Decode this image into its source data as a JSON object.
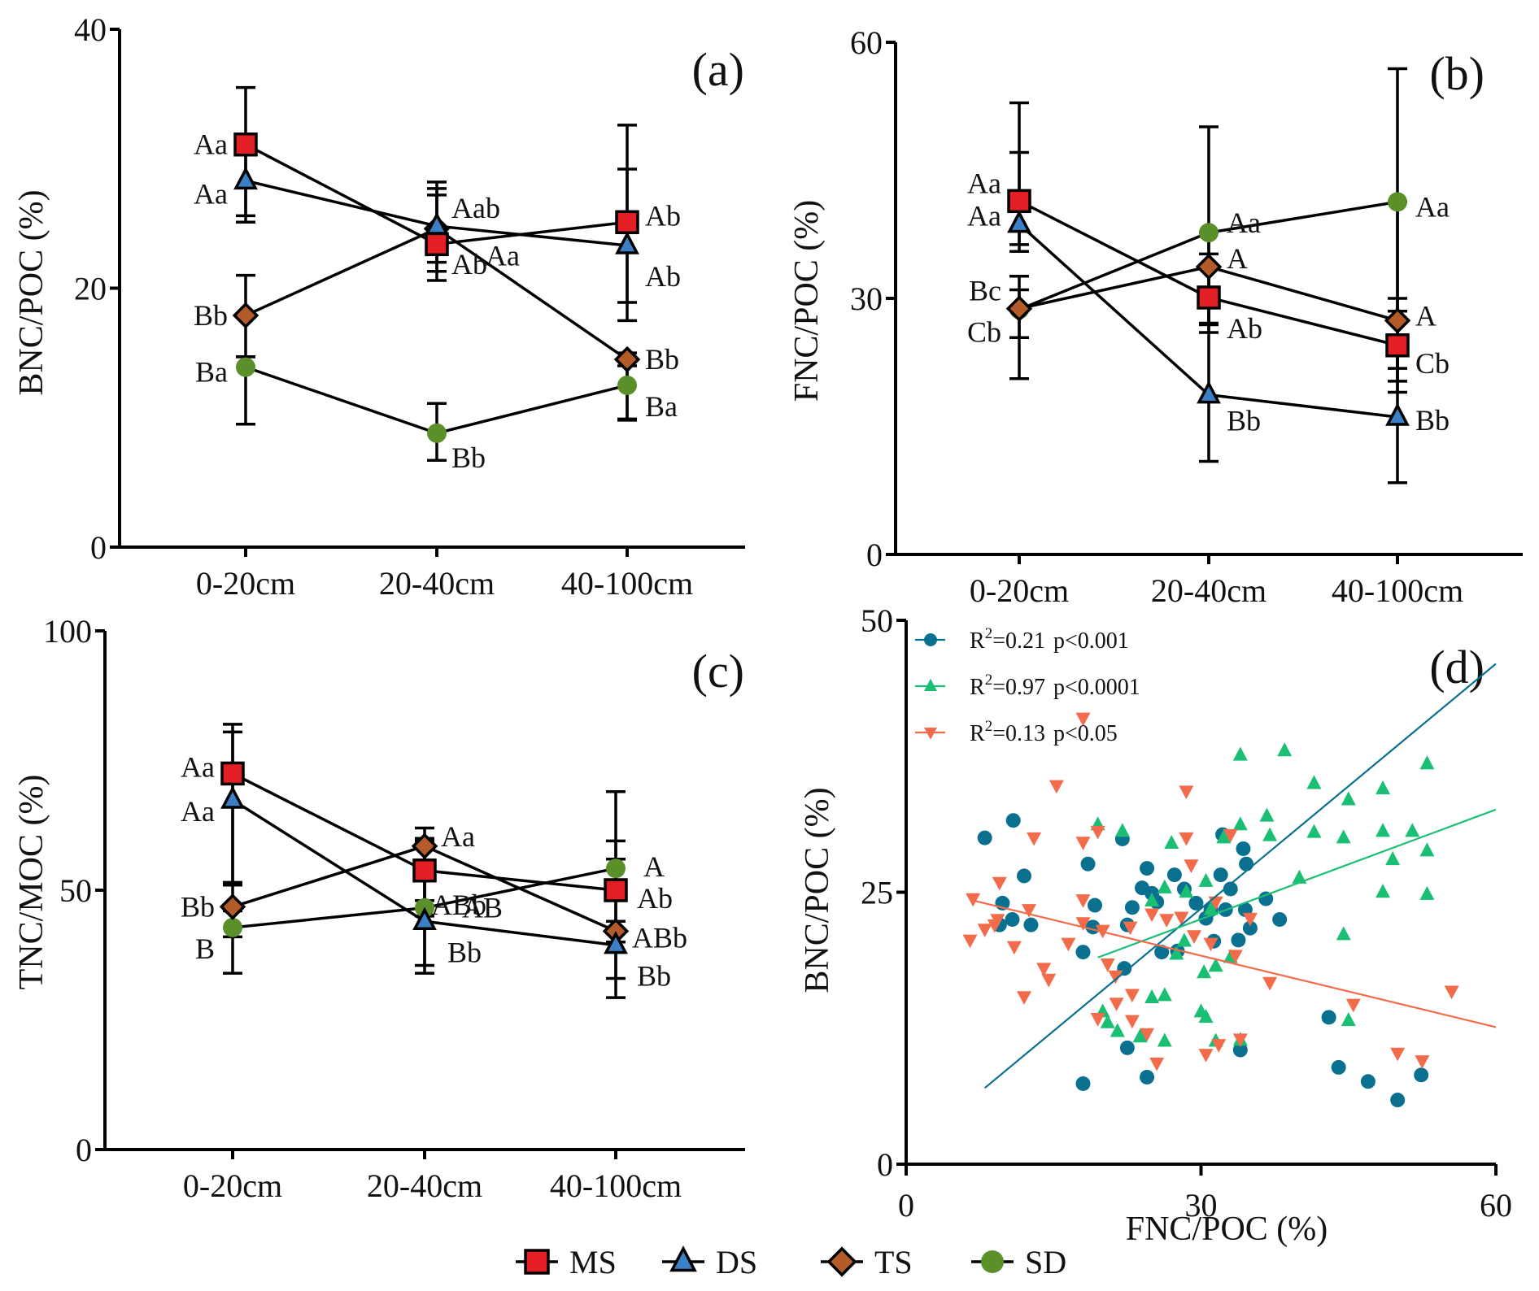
{
  "figure": {
    "legend": [
      {
        "name": "MS",
        "marker": "square",
        "color": "#e31e24"
      },
      {
        "name": "DS",
        "marker": "triangle-up",
        "color": "#3b7fc4"
      },
      {
        "name": "TS",
        "marker": "diamond",
        "color": "#b35c2a"
      },
      {
        "name": "SD",
        "marker": "circle",
        "color": "#5a8f2a"
      }
    ]
  },
  "chart_data": [
    {
      "id": "a",
      "type": "line",
      "panel_label": "(a)",
      "title": "",
      "xlabel": "",
      "ylabel": "BNC/POC (%)",
      "categories": [
        "0-20cm",
        "20-40cm",
        "40-100cm"
      ],
      "ylim": [
        0,
        40
      ],
      "yticks": [
        0,
        20,
        40
      ],
      "series": [
        {
          "name": "MS",
          "values": [
            31.1,
            23.4,
            25.1
          ],
          "err_upper": [
            35.5,
            27.7,
            32.6
          ],
          "err_lower": [
            25.6,
            20.6,
            17.5
          ],
          "labels": [
            "Aa",
            "Aa",
            "Ab"
          ]
        },
        {
          "name": "DS",
          "values": [
            28.3,
            24.8,
            23.3
          ],
          "err_upper": [
            31.1,
            28.2,
            29.2
          ],
          "err_lower": [
            25.1,
            21.3,
            18.9
          ],
          "labels": [
            "Aa",
            "Aab",
            "Ab"
          ]
        },
        {
          "name": "TS",
          "values": [
            17.9,
            24.6,
            14.5
          ],
          "err_upper": [
            21.0,
            27.2,
            15.0
          ],
          "err_lower": [
            14.7,
            22.0,
            9.8
          ],
          "labels": [
            "Bb",
            "Ab",
            "Bb"
          ]
        },
        {
          "name": "SD",
          "values": [
            13.9,
            8.8,
            12.5
          ],
          "err_upper": [
            14.7,
            11.1,
            14.0
          ],
          "err_lower": [
            9.5,
            6.7,
            9.9
          ],
          "labels": [
            "Ba",
            "Bb",
            "Ba"
          ]
        }
      ]
    },
    {
      "id": "b",
      "type": "line",
      "panel_label": "(b)",
      "title": "",
      "xlabel": "",
      "ylabel": "FNC/POC (%)",
      "categories": [
        "0-20cm",
        "20-40cm",
        "40-100cm"
      ],
      "ylim": [
        0,
        60
      ],
      "yticks": [
        0,
        30,
        60
      ],
      "series": [
        {
          "name": "MS",
          "values": [
            41.4,
            30.1,
            24.5
          ],
          "err_upper": [
            47.1,
            33.4,
            28.5
          ],
          "err_lower": [
            35.5,
            26.9,
            20.3
          ],
          "labels": [
            "Aa",
            "Ab",
            "Cb"
          ]
        },
        {
          "name": "DS",
          "values": [
            38.7,
            18.7,
            16.1
          ],
          "err_upper": [
            52.9,
            50.1,
            56.9
          ],
          "err_lower": [
            36.3,
            10.9,
            8.4
          ],
          "labels": [
            "Aa",
            "Bb",
            "Bb"
          ]
        },
        {
          "name": "TS",
          "values": [
            28.8,
            33.7,
            27.4
          ],
          "err_upper": [
            31.0,
            35.2,
            30.0
          ],
          "err_lower": [
            25.4,
            26.0,
            19.0
          ],
          "labels": [
            "Bc",
            "A",
            "A"
          ]
        },
        {
          "name": "SD",
          "values": [
            28.7,
            37.7,
            41.3
          ],
          "err_upper": [
            32.6,
            37.7,
            41.3
          ],
          "err_lower": [
            20.6,
            27.1,
            21.8
          ],
          "labels": [
            "Cb",
            "Aa",
            "Aa"
          ]
        }
      ]
    },
    {
      "id": "c",
      "type": "line",
      "panel_label": "(c)",
      "title": "",
      "xlabel": "",
      "ylabel": "TNC/MOC (%)",
      "categories": [
        "0-20cm",
        "20-40cm",
        "40-100cm"
      ],
      "ylim": [
        0,
        100
      ],
      "yticks": [
        0,
        50,
        100
      ],
      "series": [
        {
          "name": "MS",
          "values": [
            72.5,
            53.8,
            50.0
          ],
          "err_upper": [
            82.0,
            62.0,
            69.0
          ],
          "err_lower": [
            51.5,
            35.5,
            29.3
          ],
          "labels": [
            "Aa",
            "ABb",
            "Ab"
          ]
        },
        {
          "name": "DS",
          "values": [
            67.4,
            44.0,
            39.4
          ],
          "err_upper": [
            80.5,
            59.5,
            59.5
          ],
          "err_lower": [
            51.0,
            34.0,
            33.0
          ],
          "labels": [
            "Aa",
            "Bb",
            "Bb"
          ]
        },
        {
          "name": "TS",
          "values": [
            46.8,
            58.5,
            42.1
          ],
          "err_upper": [
            51.0,
            60.0,
            44.0
          ],
          "err_lower": [
            41.0,
            48.0,
            40.0
          ],
          "labels": [
            "Bb",
            "Aa",
            "ABb"
          ]
        },
        {
          "name": "SD",
          "values": [
            42.8,
            46.6,
            54.2
          ],
          "err_upper": [
            46.0,
            48.0,
            56.0
          ],
          "err_lower": [
            34.0,
            45.0,
            52.0
          ],
          "labels": [
            "B",
            "AB",
            "A"
          ]
        }
      ]
    },
    {
      "id": "d",
      "type": "scatter",
      "panel_label": "(d)",
      "title": "",
      "xlabel": "FNC/POC (%)",
      "ylabel": "BNC/POC (%)",
      "xlim": [
        0,
        60
      ],
      "ylim": [
        0,
        50
      ],
      "xticks": [
        0,
        30,
        60
      ],
      "yticks": [
        0,
        25,
        50
      ],
      "legend_position": "top-left",
      "series": [
        {
          "name": "R²=0.21 p<0.001",
          "legend_r2": "0.21",
          "legend_p": "p<0.001",
          "marker": "circle",
          "color": "#0a7090",
          "fit": {
            "x": [
              8,
              60
            ],
            "y": [
              7,
              46
            ]
          },
          "points": [
            [
              8.0,
              30.0
            ],
            [
              10.9,
              31.6
            ],
            [
              12.0,
              26.5
            ],
            [
              9.8,
              24.0
            ],
            [
              10.8,
              22.5
            ],
            [
              9.5,
              22.0
            ],
            [
              12.7,
              22.0
            ],
            [
              18.0,
              19.5
            ],
            [
              18.5,
              27.6
            ],
            [
              19.2,
              23.8
            ],
            [
              19.0,
              21.8
            ],
            [
              22.0,
              29.9
            ],
            [
              22.2,
              18.0
            ],
            [
              22.5,
              22.0
            ],
            [
              23.0,
              23.6
            ],
            [
              24.0,
              25.4
            ],
            [
              24.5,
              27.2
            ],
            [
              25.0,
              24.9
            ],
            [
              25.5,
              24.1
            ],
            [
              26.0,
              19.5
            ],
            [
              27.3,
              26.6
            ],
            [
              27.6,
              19.6
            ],
            [
              28.3,
              25.3
            ],
            [
              29.5,
              24.0
            ],
            [
              30.5,
              22.6
            ],
            [
              31.0,
              23.4
            ],
            [
              31.3,
              20.5
            ],
            [
              32.0,
              26.6
            ],
            [
              32.2,
              30.3
            ],
            [
              32.5,
              23.4
            ],
            [
              33.0,
              25.3
            ],
            [
              33.8,
              20.6
            ],
            [
              34.3,
              29.0
            ],
            [
              34.6,
              27.6
            ],
            [
              35.0,
              21.7
            ],
            [
              34.5,
              23.4
            ],
            [
              36.6,
              24.4
            ],
            [
              38.0,
              22.5
            ],
            [
              43.0,
              13.5
            ],
            [
              44.0,
              8.9
            ],
            [
              47.0,
              7.6
            ],
            [
              50.0,
              5.9
            ],
            [
              52.4,
              8.2
            ],
            [
              22.5,
              10.7
            ],
            [
              24.5,
              8.0
            ],
            [
              18.0,
              7.4
            ],
            [
              34.0,
              10.5
            ]
          ]
        },
        {
          "name": "R²=0.97 p<0.0001",
          "legend_r2": "0.97",
          "legend_p": "p<0.0001",
          "marker": "triangle-up",
          "color": "#1abf74",
          "fit": {
            "x": [
              19.5,
              60
            ],
            "y": [
              19,
              32.6
            ]
          },
          "points": [
            [
              19.5,
              31.2
            ],
            [
              22.0,
              30.6
            ],
            [
              27.0,
              29.5
            ],
            [
              30.5,
              26.0
            ],
            [
              28.5,
              25.0
            ],
            [
              25.0,
              24.2
            ],
            [
              26.3,
              25.4
            ],
            [
              31.0,
              23.4
            ],
            [
              32.3,
              30.0
            ],
            [
              34.0,
              31.2
            ],
            [
              34.0,
              37.6
            ],
            [
              38.5,
              38.0
            ],
            [
              36.7,
              32.0
            ],
            [
              37.0,
              30.2
            ],
            [
              40.0,
              26.3
            ],
            [
              41.5,
              35.0
            ],
            [
              41.5,
              30.5
            ],
            [
              45.0,
              33.5
            ],
            [
              44.5,
              30.0
            ],
            [
              48.5,
              34.5
            ],
            [
              48.5,
              30.6
            ],
            [
              51.5,
              30.6
            ],
            [
              53.0,
              36.8
            ],
            [
              49.5,
              28.0
            ],
            [
              53.0,
              28.8
            ],
            [
              48.5,
              25.0
            ],
            [
              53.0,
              24.8
            ],
            [
              44.5,
              21.1
            ],
            [
              45.0,
              13.2
            ],
            [
              33.0,
              19.0
            ],
            [
              30.3,
              17.6
            ],
            [
              31.5,
              18.2
            ],
            [
              26.3,
              15.5
            ],
            [
              25.0,
              15.3
            ],
            [
              30.0,
              14.0
            ],
            [
              30.5,
              13.5
            ],
            [
              20.0,
              14.0
            ],
            [
              21.5,
              12.2
            ],
            [
              23.8,
              11.7
            ],
            [
              26.3,
              11.3
            ],
            [
              31.5,
              11.3
            ],
            [
              34.0,
              11.4
            ],
            [
              27.5,
              19.3
            ],
            [
              28.3,
              20.5
            ],
            [
              20.5,
              13.0
            ]
          ]
        },
        {
          "name": "R²=0.13 p<0.05",
          "legend_r2": "0.13",
          "legend_p": "p<0.05",
          "marker": "triangle-down",
          "color": "#f26b4a",
          "fit": {
            "x": [
              7,
              60
            ],
            "y": [
              24.2,
              12.6
            ]
          },
          "points": [
            [
              6.8,
              24.4
            ],
            [
              6.5,
              20.6
            ],
            [
              8.0,
              21.6
            ],
            [
              9.5,
              25.9
            ],
            [
              9.3,
              22.5
            ],
            [
              11.0,
              20.0
            ],
            [
              12.0,
              15.4
            ],
            [
              12.5,
              23.4
            ],
            [
              13.0,
              30.0
            ],
            [
              14.0,
              18.0
            ],
            [
              14.5,
              17.0
            ],
            [
              15.3,
              34.8
            ],
            [
              16.5,
              20.3
            ],
            [
              18.0,
              29.6
            ],
            [
              18.0,
              24.3
            ],
            [
              18.0,
              22.2
            ],
            [
              19.5,
              13.4
            ],
            [
              19.5,
              30.6
            ],
            [
              20.0,
              21.5
            ],
            [
              20.5,
              18.4
            ],
            [
              21.3,
              17.3
            ],
            [
              21.4,
              14.8
            ],
            [
              22.8,
              21.8
            ],
            [
              23.0,
              15.6
            ],
            [
              23.0,
              13.2
            ],
            [
              24.5,
              12.0
            ],
            [
              25.0,
              23.0
            ],
            [
              25.5,
              9.3
            ],
            [
              26.5,
              22.5
            ],
            [
              28.0,
              22.7
            ],
            [
              28.5,
              34.3
            ],
            [
              28.5,
              30.0
            ],
            [
              29.0,
              27.5
            ],
            [
              29.3,
              21.0
            ],
            [
              30.5,
              10.1
            ],
            [
              31.0,
              20.3
            ],
            [
              31.5,
              24.1
            ],
            [
              31.8,
              11.0
            ],
            [
              33.0,
              30.3
            ],
            [
              33.5,
              19.2
            ],
            [
              34.0,
              11.5
            ],
            [
              35.0,
              22.6
            ],
            [
              37.0,
              16.7
            ],
            [
              45.5,
              14.7
            ],
            [
              50.0,
              10.2
            ],
            [
              52.5,
              9.5
            ],
            [
              55.5,
              15.9
            ],
            [
              18.0,
              41.0
            ],
            [
              9.0,
              22.0
            ]
          ]
        }
      ]
    }
  ]
}
